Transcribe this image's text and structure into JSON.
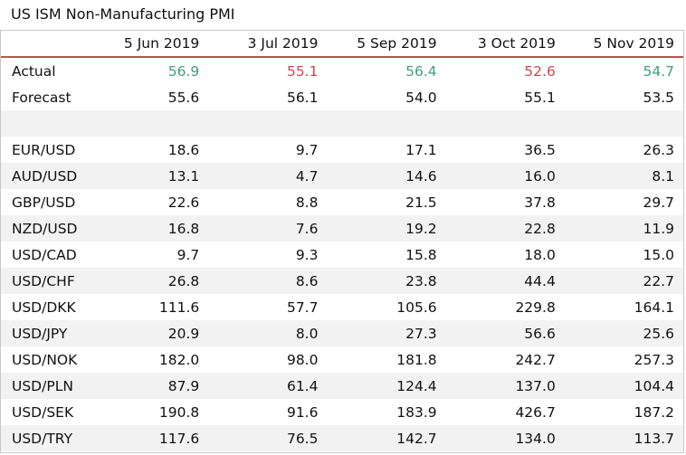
{
  "title": "US ISM Non-Manufacturing PMI",
  "columns": [
    "5 Jun 2019",
    "3 Jul 2019",
    "5 Sep 2019",
    "3 Oct 2019",
    "5 Nov 2019"
  ],
  "actual": {
    "label": "Actual",
    "values": [
      "56.9",
      "55.1",
      "56.4",
      "52.6",
      "54.7"
    ],
    "direction": [
      "up",
      "down",
      "up",
      "down",
      "up"
    ]
  },
  "forecast": {
    "label": "Forecast",
    "values": [
      "55.6",
      "56.1",
      "54.0",
      "55.1",
      "53.5"
    ]
  },
  "colors": {
    "positive": "#3f9f7a",
    "negative": "#c9474b",
    "accent_rule": "#c0504d",
    "band": "#f2f2f2"
  },
  "pairs": [
    {
      "label": "EUR/USD",
      "values": [
        "18.6",
        "9.7",
        "17.1",
        "36.5",
        "26.3"
      ]
    },
    {
      "label": "AUD/USD",
      "values": [
        "13.1",
        "4.7",
        "14.6",
        "16.0",
        "8.1"
      ]
    },
    {
      "label": "GBP/USD",
      "values": [
        "22.6",
        "8.8",
        "21.5",
        "37.8",
        "29.7"
      ]
    },
    {
      "label": "NZD/USD",
      "values": [
        "16.8",
        "7.6",
        "19.2",
        "22.8",
        "11.9"
      ]
    },
    {
      "label": "USD/CAD",
      "values": [
        "9.7",
        "9.3",
        "15.8",
        "18.0",
        "15.0"
      ]
    },
    {
      "label": "USD/CHF",
      "values": [
        "26.8",
        "8.6",
        "23.8",
        "44.4",
        "22.7"
      ]
    },
    {
      "label": "USD/DKK",
      "values": [
        "111.6",
        "57.7",
        "105.6",
        "229.8",
        "164.1"
      ]
    },
    {
      "label": "USD/JPY",
      "values": [
        "20.9",
        "8.0",
        "27.3",
        "56.6",
        "25.6"
      ]
    },
    {
      "label": "USD/NOK",
      "values": [
        "182.0",
        "98.0",
        "181.8",
        "242.7",
        "257.3"
      ]
    },
    {
      "label": "USD/PLN",
      "values": [
        "87.9",
        "61.4",
        "124.4",
        "137.0",
        "104.4"
      ]
    },
    {
      "label": "USD/SEK",
      "values": [
        "190.8",
        "91.6",
        "183.9",
        "426.7",
        "187.2"
      ]
    },
    {
      "label": "USD/TRY",
      "values": [
        "117.6",
        "76.5",
        "142.7",
        "134.0",
        "113.7"
      ]
    }
  ]
}
